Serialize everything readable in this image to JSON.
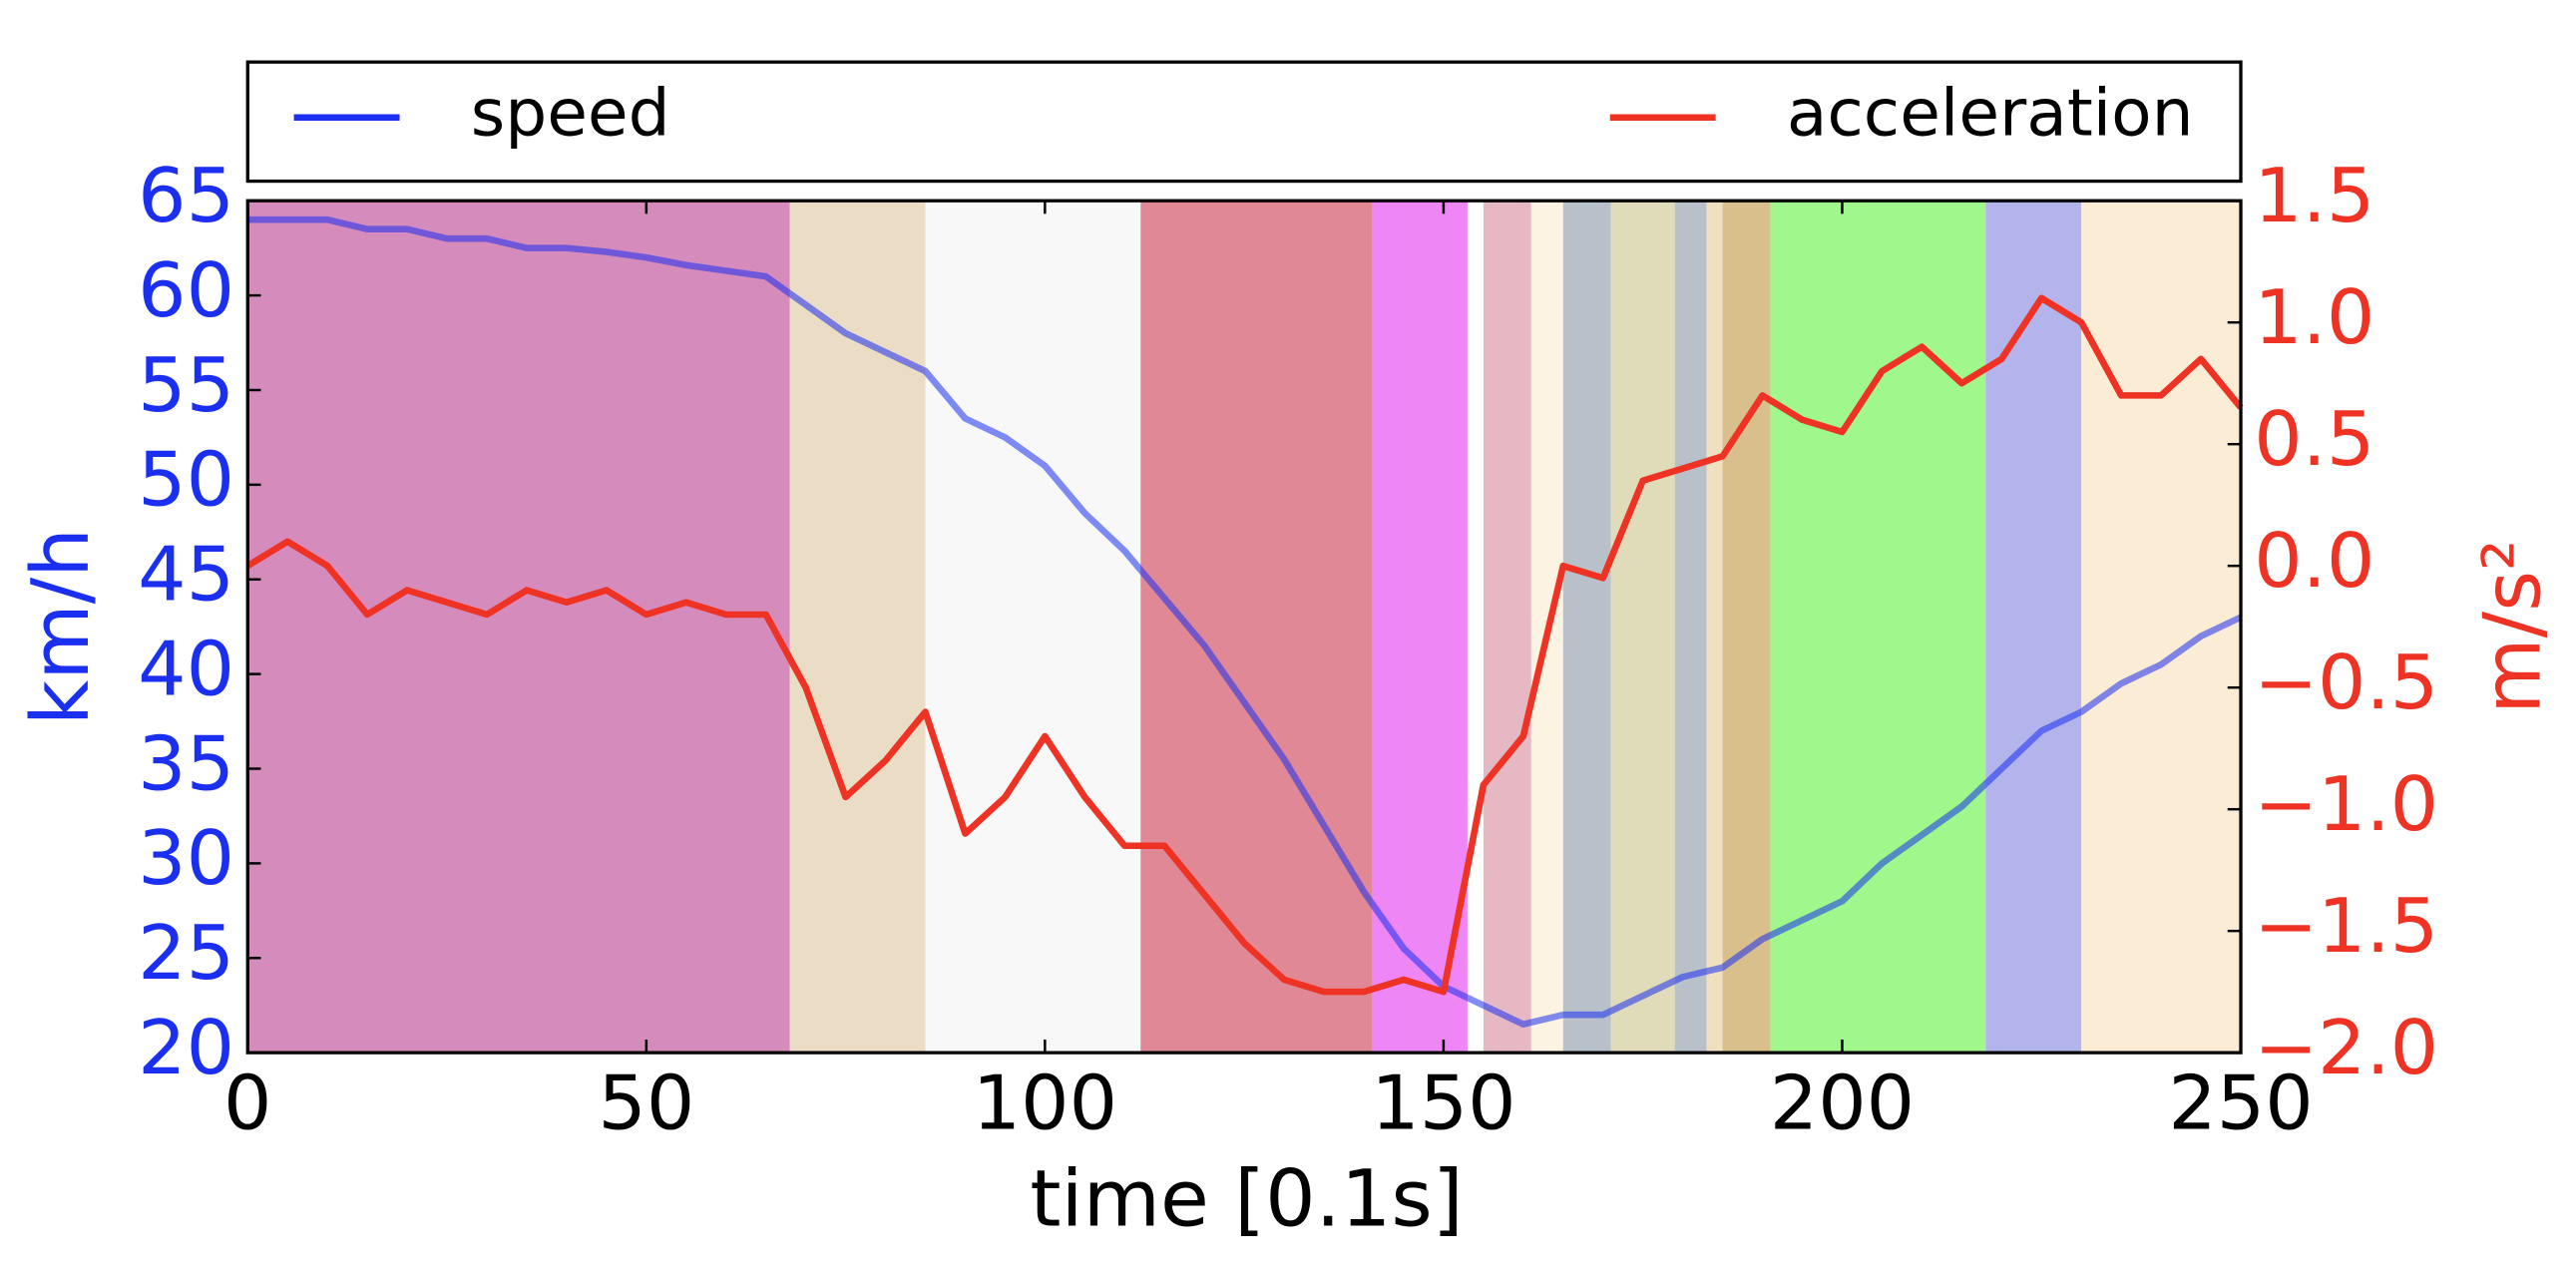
{
  "chart_data": {
    "type": "line",
    "xlabel": "time [0.1s]",
    "ylabel": "km/h",
    "y2label": "m/s²",
    "x": [
      0,
      5,
      10,
      15,
      20,
      25,
      30,
      35,
      40,
      45,
      50,
      55,
      60,
      65,
      70,
      75,
      80,
      85,
      90,
      95,
      100,
      105,
      110,
      115,
      120,
      125,
      130,
      135,
      140,
      145,
      150,
      155,
      160,
      165,
      170,
      175,
      180,
      185,
      190,
      195,
      200,
      205,
      210,
      215,
      220,
      225,
      230,
      235,
      240,
      245,
      250
    ],
    "series": [
      {
        "name": "speed",
        "color": "#1a2ff0",
        "axis": "y",
        "values": [
          64,
          64,
          64,
          63.5,
          63.5,
          63,
          63,
          62.5,
          62.5,
          62.3,
          62,
          61.6,
          61.3,
          61,
          59.5,
          58,
          57,
          56,
          53.5,
          52.5,
          51,
          48.5,
          46.5,
          44,
          41.5,
          38.5,
          35.5,
          32,
          28.5,
          25.5,
          23.5,
          22.5,
          21.5,
          22,
          22,
          23,
          24,
          24.5,
          26,
          27,
          28,
          30,
          31.5,
          33,
          35,
          37,
          38,
          39.5,
          40.5,
          42,
          43
        ]
      },
      {
        "name": "acceleration",
        "color": "#ee3224",
        "axis": "y2",
        "values": [
          0,
          0.1,
          0,
          -0.2,
          -0.1,
          -0.15,
          -0.2,
          -0.1,
          -0.15,
          -0.1,
          -0.2,
          -0.15,
          -0.2,
          -0.2,
          -0.5,
          -0.95,
          -0.8,
          -0.6,
          -1.1,
          -0.95,
          -0.7,
          -0.95,
          -1.15,
          -1.15,
          -1.35,
          -1.55,
          -1.7,
          -1.75,
          -1.75,
          -1.7,
          -1.75,
          -0.9,
          -0.7,
          0,
          -0.05,
          0.35,
          0.4,
          0.45,
          0.7,
          0.6,
          0.55,
          0.8,
          0.9,
          0.75,
          0.85,
          1.1,
          1,
          0.7,
          0.7,
          0.85,
          0.65
        ]
      }
    ],
    "bands": [
      {
        "x": [
          0,
          68
        ],
        "color": "#d68bbd"
      },
      {
        "x": [
          68,
          85
        ],
        "color": "#ebdcc5"
      },
      {
        "x": [
          85,
          112
        ],
        "color": "#f8f8f8"
      },
      {
        "x": [
          112,
          141
        ],
        "color": "#e08896"
      },
      {
        "x": [
          141,
          153
        ],
        "color": "#ee86f5"
      },
      {
        "x": [
          155,
          161
        ],
        "color": "#e5b8c4"
      },
      {
        "x": [
          161,
          165
        ],
        "color": "#fdf3e3"
      },
      {
        "x": [
          165,
          171
        ],
        "color": "#b8c1c9"
      },
      {
        "x": [
          171,
          179
        ],
        "color": "#e0dbb8"
      },
      {
        "x": [
          179,
          183
        ],
        "color": "#b8c1c9"
      },
      {
        "x": [
          183,
          185
        ],
        "color": "#f0e0c0"
      },
      {
        "x": [
          185,
          191
        ],
        "color": "#d8bf8c"
      },
      {
        "x": [
          191,
          218
        ],
        "color": "#a0f88c"
      },
      {
        "x": [
          218,
          230
        ],
        "color": "#b4b4ec"
      },
      {
        "x": [
          230,
          250
        ],
        "color": "#fbecd6"
      }
    ],
    "xlim": [
      0,
      250
    ],
    "xticks": [
      0,
      50,
      100,
      150,
      200,
      250
    ],
    "ylim": [
      20,
      65
    ],
    "yticks": [
      20,
      25,
      30,
      35,
      40,
      45,
      50,
      55,
      60,
      65
    ],
    "y2lim": [
      -2,
      1.5
    ],
    "y2ticks": [
      {
        "value": -2,
        "label": "−2.0"
      },
      {
        "value": -1.5,
        "label": "−1.5"
      },
      {
        "value": -1,
        "label": "−1.0"
      },
      {
        "value": -0.5,
        "label": "−0.5"
      },
      {
        "value": 0,
        "label": "0.0"
      },
      {
        "value": 0.5,
        "label": "0.5"
      },
      {
        "value": 1,
        "label": "1.0"
      },
      {
        "value": 1.5,
        "label": "1.5"
      }
    ],
    "legend": "top"
  }
}
